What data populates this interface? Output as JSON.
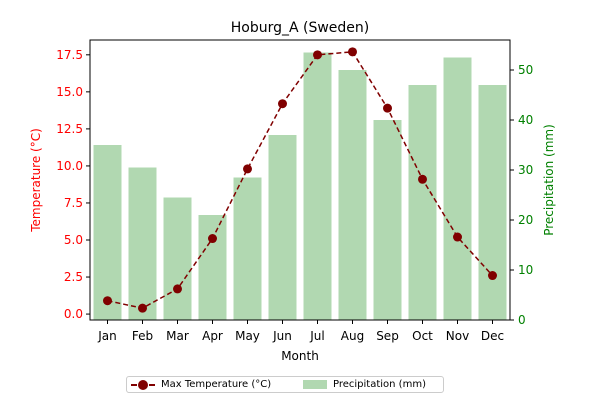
{
  "chart_data": {
    "type": "bar+line",
    "title": "Hoburg_A (Sweden)",
    "xlabel": "Month",
    "ylabel_left": "Temperature (°C)",
    "ylabel_right": "Precipitation (mm)",
    "categories": [
      "Jan",
      "Feb",
      "Mar",
      "Apr",
      "May",
      "Jun",
      "Jul",
      "Aug",
      "Sep",
      "Oct",
      "Nov",
      "Dec"
    ],
    "y_left": {
      "lim": [
        -0.4,
        18.5
      ],
      "ticks": [
        "0.0",
        "2.5",
        "5.0",
        "7.5",
        "10.0",
        "12.5",
        "15.0",
        "17.5"
      ]
    },
    "y_right": {
      "lim": [
        0,
        56
      ],
      "ticks": [
        "0",
        "10",
        "20",
        "30",
        "40",
        "50"
      ]
    },
    "series": [
      {
        "name": "Max Temperature (°C)",
        "kind": "line",
        "axis": "left",
        "color": "#800000",
        "style": "dashed",
        "marker": "circle",
        "values": [
          0.9,
          0.4,
          1.7,
          5.1,
          9.8,
          14.2,
          17.5,
          17.7,
          13.9,
          9.1,
          5.2,
          2.6
        ]
      },
      {
        "name": "Precipitation (mm)",
        "kind": "bar",
        "axis": "right",
        "color": "#b1d8b1",
        "values": [
          35,
          30.5,
          24.5,
          21,
          28.5,
          37,
          53.5,
          50,
          40,
          47,
          52.5,
          47
        ]
      }
    ],
    "colors": {
      "left_axis": "#ff0000",
      "right_axis": "#008000"
    },
    "legend_position": "bottom-center",
    "grid": false
  }
}
